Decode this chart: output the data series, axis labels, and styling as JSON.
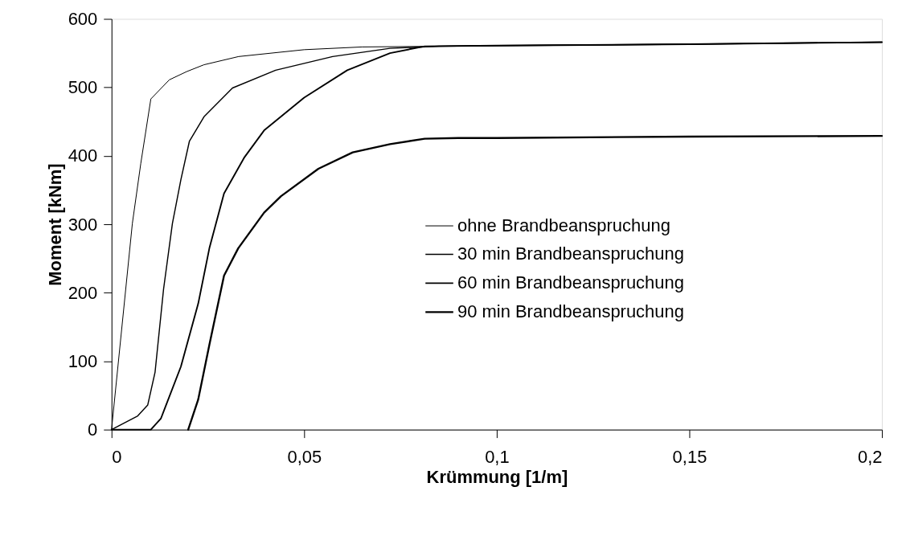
{
  "chart_data": {
    "type": "line",
    "xlabel": "Krümmung [1/m]",
    "ylabel": "Moment [kNm]",
    "xlim": [
      0,
      0.2
    ],
    "ylim": [
      0,
      600
    ],
    "xticks": [
      {
        "value": 0,
        "label": "0"
      },
      {
        "value": 0.05,
        "label": "0,05"
      },
      {
        "value": 0.1,
        "label": "0,1"
      },
      {
        "value": 0.15,
        "label": "0,15"
      },
      {
        "value": 0.2,
        "label": "0,2"
      }
    ],
    "yticks": [
      0,
      100,
      200,
      300,
      400,
      500,
      600
    ],
    "grid": false,
    "legend": "center",
    "marker": "none",
    "line_style": "solid",
    "series": [
      {
        "name": "ohne Brandbeanspruchung",
        "color": "#000000",
        "x": [
          0,
          0.0054,
          0.0076,
          0.0102,
          0.015,
          0.0195,
          0.024,
          0.033,
          0.05,
          0.065,
          0.085,
          0.1,
          0.15,
          0.2
        ],
        "values": [
          0,
          301,
          389,
          483,
          511,
          523,
          533,
          545,
          555,
          559,
          560,
          561,
          563,
          566
        ]
      },
      {
        "name": "30 min Brandbeanspruchung",
        "color": "#000000",
        "x": [
          0,
          0.0068,
          0.0094,
          0.0113,
          0.0135,
          0.0158,
          0.018,
          0.0202,
          0.024,
          0.0314,
          0.0426,
          0.0574,
          0.0723,
          0.085,
          0.1,
          0.15,
          0.2
        ],
        "values": [
          0,
          20,
          36,
          84,
          205,
          301,
          365,
          421,
          457,
          499,
          525,
          545,
          557,
          560,
          561,
          563,
          566
        ]
      },
      {
        "name": "60 min Brandbeanspruchung",
        "color": "#000000",
        "x": [
          0,
          0.0102,
          0.0128,
          0.018,
          0.0225,
          0.0254,
          0.0292,
          0.0344,
          0.0396,
          0.05,
          0.0612,
          0.0723,
          0.0813,
          0.1,
          0.15,
          0.2
        ],
        "values": [
          0,
          0,
          16,
          92,
          184,
          265,
          345,
          397,
          437,
          485,
          525,
          550,
          560,
          561,
          563,
          566
        ]
      },
      {
        "name": "90 min Brandbeanspruchung",
        "color": "#000000",
        "x": [
          0.0199,
          0.0225,
          0.0254,
          0.0292,
          0.0329,
          0.0396,
          0.044,
          0.0537,
          0.0626,
          0.0723,
          0.0813,
          0.09,
          0.1,
          0.15,
          0.2
        ],
        "values": [
          0,
          44,
          124,
          225,
          265,
          317,
          341,
          381,
          405,
          417,
          425,
          426,
          426,
          428,
          429
        ]
      }
    ]
  }
}
